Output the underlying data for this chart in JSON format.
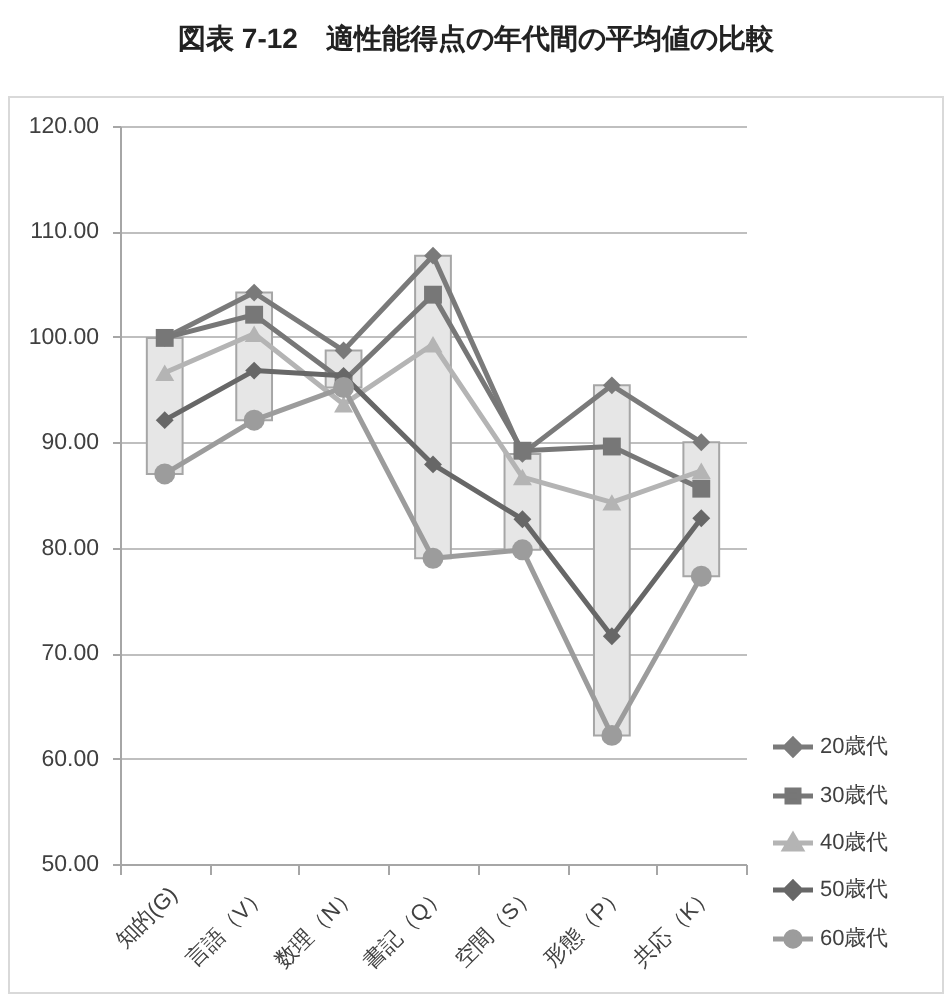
{
  "chart_data": {
    "type": "line",
    "title": "図表 7-12　適性能得点の年代間の平均値の比較",
    "categories": [
      "知的(G)",
      "言語（V）",
      "数理（N）",
      "書記（Q）",
      "空間（S）",
      "形態（P）",
      "共応（K）"
    ],
    "ylim": [
      50,
      120
    ],
    "yticks": [
      {
        "value": 50,
        "label": "50.00"
      },
      {
        "value": 60,
        "label": "60.00"
      },
      {
        "value": 70,
        "label": "70.00"
      },
      {
        "value": 80,
        "label": "80.00"
      },
      {
        "value": 90,
        "label": "90.00"
      },
      {
        "value": 100,
        "label": "100.00"
      },
      {
        "value": 110,
        "label": "110.00"
      },
      {
        "value": 120,
        "label": "120.00"
      }
    ],
    "grid": "y",
    "legend": "right",
    "series": [
      {
        "type": "bar",
        "color": "#e6e6e6",
        "base": [
          87.0,
          92.1,
          95.2,
          79.0,
          79.8,
          62.2,
          77.3
        ],
        "values": [
          12.9,
          12.1,
          3.5,
          28.7,
          9.1,
          33.2,
          12.7
        ]
      },
      {
        "name": "20歳代",
        "color": "#7a7a7a",
        "marker": "diamond",
        "values": [
          99.9,
          104.2,
          98.7,
          107.7,
          88.9,
          95.4,
          90.0
        ]
      },
      {
        "name": "30歳代",
        "color": "#777777",
        "marker": "square",
        "values": [
          99.9,
          102.1,
          95.8,
          104.0,
          89.2,
          89.6,
          85.6
        ]
      },
      {
        "name": "40歳代",
        "color": "#b4b4b4",
        "marker": "triangle",
        "values": [
          96.6,
          100.3,
          93.6,
          99.3,
          86.7,
          84.3,
          87.3
        ]
      },
      {
        "name": "50歳代",
        "color": "#676767",
        "marker": "diamond",
        "values": [
          92.1,
          96.8,
          96.3,
          87.9,
          82.7,
          71.6,
          82.8
        ]
      },
      {
        "name": "60歳代",
        "color": "#9c9c9c",
        "marker": "circle",
        "values": [
          87.0,
          92.1,
          95.2,
          79.0,
          79.8,
          62.2,
          77.3
        ]
      }
    ]
  }
}
